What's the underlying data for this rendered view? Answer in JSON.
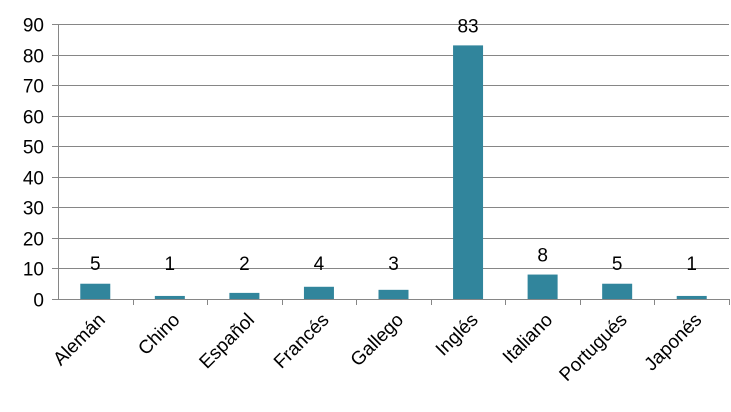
{
  "chart_data": {
    "type": "bar",
    "categories": [
      "Alemán",
      "Chino",
      "Español",
      "Francés",
      "Gallego",
      "Inglés",
      "Italiano",
      "Portugués",
      "Japonés"
    ],
    "values": [
      5,
      1,
      2,
      4,
      3,
      83,
      8,
      5,
      1
    ],
    "data_labels": [
      "5",
      "1",
      "2",
      "4",
      "3",
      "83",
      "8",
      "5",
      "1"
    ],
    "y_ticks": [
      "0",
      "10",
      "20",
      "30",
      "40",
      "50",
      "60",
      "70",
      "80",
      "90"
    ],
    "ylim": [
      0,
      90
    ],
    "grid": true,
    "legend": "none",
    "bar_color": "#31859C"
  }
}
